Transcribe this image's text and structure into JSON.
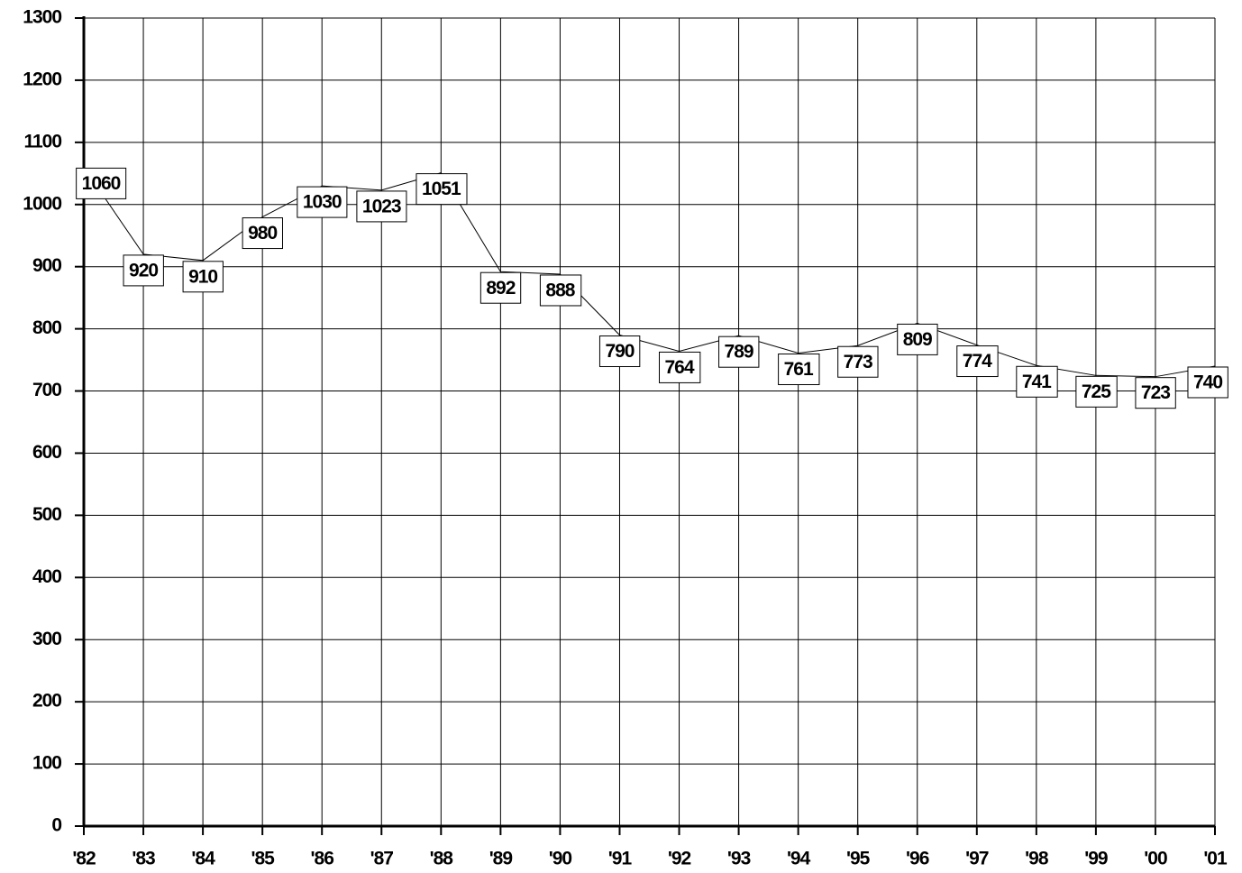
{
  "chart_data": {
    "type": "line",
    "categories": [
      "'82",
      "'83",
      "'84",
      "'85",
      "'86",
      "'87",
      "'88",
      "'89",
      "'90",
      "'91",
      "'92",
      "'93",
      "'94",
      "'95",
      "'96",
      "'97",
      "'98",
      "'99",
      "'00",
      "'01"
    ],
    "values": [
      1060,
      920,
      910,
      980,
      1030,
      1023,
      1051,
      892,
      888,
      790,
      764,
      789,
      761,
      773,
      809,
      774,
      741,
      725,
      723,
      740
    ],
    "color": "#000000",
    "ylim": [
      0,
      1300
    ],
    "yticks": [
      0,
      100,
      200,
      300,
      400,
      500,
      600,
      700,
      800,
      900,
      1000,
      1100,
      1200,
      1300
    ],
    "grid": true
  }
}
